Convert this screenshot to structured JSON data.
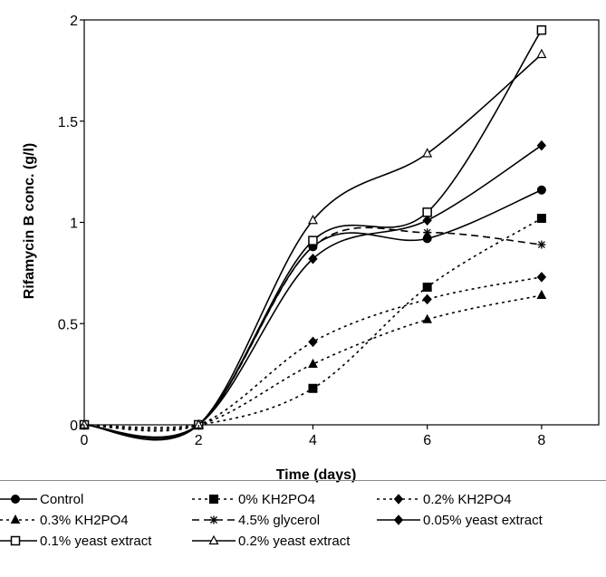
{
  "chart_data": {
    "type": "line",
    "title": "",
    "xlabel": "Time (days)",
    "ylabel": "Rifamycin B conc. (g/l)",
    "xlim": [
      0,
      9
    ],
    "ylim": [
      0,
      2
    ],
    "xticks": [
      "0",
      "2",
      "4",
      "6",
      "8"
    ],
    "yticks": [
      "0",
      "0.5",
      "1",
      "1.5",
      "2"
    ],
    "grid": false,
    "legend_position": "bottom",
    "x": [
      0,
      2,
      4,
      6,
      8
    ],
    "series": [
      {
        "name": "Control",
        "values": [
          0,
          0,
          0.88,
          0.92,
          1.16
        ],
        "marker": "circle-filled",
        "line": "solid"
      },
      {
        "name": "0% KH2PO4",
        "values": [
          0,
          0,
          0.18,
          0.68,
          1.02
        ],
        "marker": "square-filled",
        "line": "dotted"
      },
      {
        "name": "0.2% KH2PO4",
        "values": [
          0,
          0,
          0.41,
          0.62,
          0.73
        ],
        "marker": "diamond-filled",
        "line": "dotted"
      },
      {
        "name": "0.3% KH2PO4",
        "values": [
          0,
          0,
          0.3,
          0.52,
          0.64
        ],
        "marker": "triangle-filled",
        "line": "dotted"
      },
      {
        "name": "4.5% glycerol",
        "values": [
          0,
          0,
          0.88,
          0.95,
          0.89
        ],
        "marker": "star",
        "line": "dashed"
      },
      {
        "name": "0.05% yeast extract",
        "values": [
          0,
          0,
          0.82,
          1.01,
          1.38
        ],
        "marker": "diamond-filled",
        "line": "solid"
      },
      {
        "name": "0.1% yeast extract",
        "values": [
          0,
          0,
          0.91,
          1.05,
          1.95
        ],
        "marker": "square-open",
        "line": "solid"
      },
      {
        "name": "0.2% yeast extract",
        "values": [
          0,
          0,
          1.01,
          1.34,
          1.83
        ],
        "marker": "triangle-open",
        "line": "solid"
      }
    ]
  }
}
